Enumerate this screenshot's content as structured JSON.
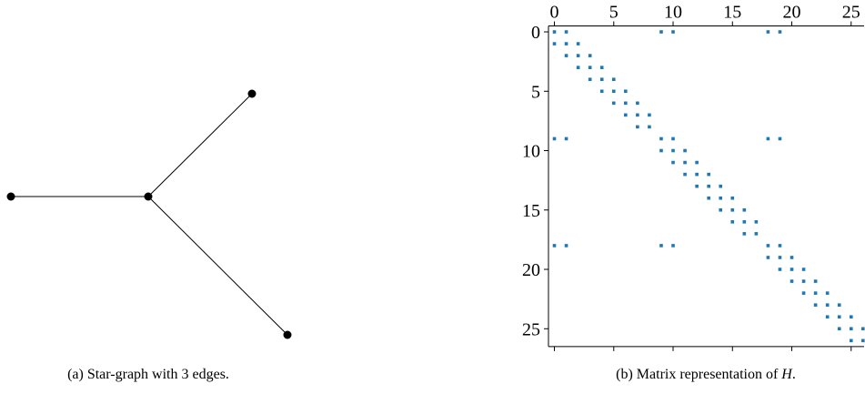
{
  "figure_a": {
    "caption": "(a) Star-graph with 3 edges."
  },
  "figure_b": {
    "caption": {
      "text": "(b) Matrix representation of ",
      "symbol": "H",
      "end": "."
    }
  },
  "chart_data": {
    "type": "spy",
    "color": "#1f77b4",
    "xlim": [
      -0.5,
      26.5
    ],
    "ylim": [
      26.5,
      -0.5
    ],
    "xticks": [
      0,
      5,
      10,
      15,
      20,
      25
    ],
    "yticks": [
      0,
      5,
      10,
      15,
      20,
      25
    ],
    "x": [
      0,
      1,
      9,
      10,
      18,
      19,
      0,
      1,
      2,
      1,
      2,
      3,
      2,
      3,
      4,
      3,
      4,
      5,
      4,
      5,
      6,
      5,
      6,
      7,
      6,
      7,
      8,
      7,
      8,
      0,
      1,
      9,
      10,
      18,
      19,
      9,
      10,
      11,
      10,
      11,
      12,
      11,
      12,
      13,
      12,
      13,
      14,
      13,
      14,
      15,
      14,
      15,
      16,
      15,
      16,
      17,
      16,
      17,
      0,
      1,
      9,
      10,
      18,
      19,
      18,
      19,
      20,
      19,
      20,
      21,
      20,
      21,
      22,
      21,
      22,
      23,
      22,
      23,
      24,
      23,
      24,
      25,
      24,
      25,
      26,
      25,
      26
    ],
    "y": [
      0,
      0,
      0,
      0,
      0,
      0,
      1,
      1,
      1,
      2,
      2,
      2,
      3,
      3,
      3,
      4,
      4,
      4,
      5,
      5,
      5,
      6,
      6,
      6,
      7,
      7,
      7,
      8,
      8,
      9,
      9,
      9,
      9,
      9,
      9,
      10,
      10,
      10,
      11,
      11,
      11,
      12,
      12,
      12,
      13,
      13,
      13,
      14,
      14,
      14,
      15,
      15,
      15,
      16,
      16,
      16,
      17,
      17,
      18,
      18,
      18,
      18,
      18,
      18,
      19,
      19,
      19,
      20,
      20,
      20,
      21,
      21,
      21,
      22,
      22,
      22,
      23,
      23,
      23,
      24,
      24,
      24,
      25,
      25,
      25,
      26,
      26
    ]
  }
}
